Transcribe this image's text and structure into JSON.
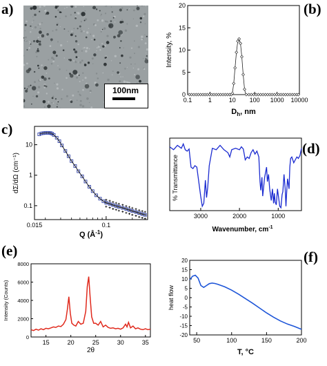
{
  "figure": {
    "panel_labels": [
      "a)",
      "(b)",
      "c)",
      "(d)",
      "(e)",
      "(f)"
    ],
    "scale_bar": "100nm"
  },
  "chart_data": [
    {
      "panel": "b",
      "type": "scatter",
      "xlabel_main": "D",
      "xlabel_sub": "h",
      "xlabel_tail": ", nm",
      "ylabel": "Intensity, %",
      "xscale": "log",
      "xlim": [
        0.1,
        10000
      ],
      "ylim": [
        0,
        20
      ],
      "xticks": [
        "0.1",
        "1",
        "10",
        "100",
        "1000",
        "10000"
      ],
      "yticks": [
        "0",
        "5",
        "10",
        "15",
        "20"
      ],
      "peak_x": [
        10,
        11.5,
        13.2,
        15.2,
        17.5,
        20.1,
        23.1,
        26.5,
        30.5,
        35.1
      ],
      "peak_y": [
        0.3,
        2.5,
        6.0,
        9.5,
        12.0,
        12.5,
        11.5,
        8.5,
        4.5,
        1.2
      ],
      "baseline_x": [
        0.12,
        0.15,
        0.19,
        0.24,
        0.3,
        0.38,
        0.48,
        0.6,
        0.75,
        0.95,
        1.2,
        1.5,
        1.9,
        2.4,
        3.0,
        3.8,
        4.8,
        6.0,
        7.5,
        9.0,
        42,
        55,
        70,
        90,
        115,
        145,
        185,
        235,
        300,
        380,
        480,
        600,
        760,
        960,
        1200,
        1500,
        1900,
        2400,
        3000,
        3800,
        4800,
        6000,
        7500,
        9000
      ],
      "baseline_y": 0
    },
    {
      "panel": "c",
      "type": "scatter",
      "xlabel": "Q (Å",
      "xlabel_sup": "-1",
      "xlabel_tail": ")",
      "ylabel": "dΣ/dΩ (cm⁻¹)",
      "xscale": "log",
      "yscale": "log",
      "xlim": [
        0.015,
        0.3
      ],
      "ylim": [
        0.035,
        40
      ],
      "xticks": [
        "0.015",
        "0.1"
      ],
      "yticks": [
        "0.1",
        "1",
        "10"
      ],
      "x": [
        0.017,
        0.018,
        0.019,
        0.02,
        0.021,
        0.022,
        0.023,
        0.024,
        0.025,
        0.027,
        0.029,
        0.031,
        0.034,
        0.037,
        0.04,
        0.044,
        0.048,
        0.053,
        0.058,
        0.064,
        0.07,
        0.077,
        0.085,
        0.093,
        0.1,
        0.11,
        0.12,
        0.13,
        0.14,
        0.155,
        0.17,
        0.185,
        0.2,
        0.22,
        0.24,
        0.26,
        0.28
      ],
      "y": [
        22,
        23.5,
        24,
        24.5,
        24.5,
        24.5,
        24,
        23,
        21,
        17,
        13,
        9.5,
        6.2,
        4.2,
        2.9,
        2.0,
        1.35,
        0.92,
        0.62,
        0.42,
        0.3,
        0.22,
        0.17,
        0.14,
        0.125,
        0.115,
        0.105,
        0.098,
        0.092,
        0.085,
        0.078,
        0.072,
        0.067,
        0.062,
        0.057,
        0.053,
        0.05
      ]
    },
    {
      "panel": "d",
      "type": "line",
      "xlabel": "Wavenumber, cm",
      "xlabel_sup": "-1",
      "ylabel": "% Transmittance",
      "xlim": [
        3800,
        400
      ],
      "xticks": [
        "3000",
        "2000",
        "1000"
      ],
      "x": [
        3800,
        3700,
        3600,
        3500,
        3450,
        3400,
        3350,
        3300,
        3250,
        3200,
        3150,
        3100,
        3050,
        3000,
        2960,
        2920,
        2880,
        2850,
        2820,
        2780,
        2700,
        2600,
        2500,
        2400,
        2300,
        2250,
        2200,
        2100,
        2000,
        1950,
        1900,
        1850,
        1800,
        1750,
        1700,
        1650,
        1600,
        1550,
        1500,
        1470,
        1450,
        1420,
        1400,
        1380,
        1350,
        1300,
        1280,
        1250,
        1220,
        1180,
        1150,
        1120,
        1100,
        1080,
        1050,
        1020,
        1000,
        960,
        930,
        900,
        880,
        850,
        820,
        800,
        780,
        760,
        720,
        700,
        680,
        650,
        600,
        560,
        520,
        480,
        440,
        400
      ],
      "y": [
        0.88,
        0.84,
        0.9,
        0.86,
        0.92,
        0.84,
        0.82,
        0.85,
        0.6,
        0.58,
        0.62,
        0.6,
        0.4,
        0.2,
        0.06,
        0.1,
        0.42,
        0.18,
        0.32,
        0.62,
        0.86,
        0.84,
        0.9,
        0.84,
        0.8,
        0.74,
        0.84,
        0.86,
        0.84,
        0.88,
        0.85,
        0.7,
        0.74,
        0.72,
        0.8,
        0.84,
        0.78,
        0.82,
        0.74,
        0.4,
        0.28,
        0.46,
        0.2,
        0.3,
        0.46,
        0.6,
        0.4,
        0.5,
        0.3,
        0.14,
        0.3,
        0.1,
        0.24,
        0.12,
        0.08,
        0.3,
        0.22,
        0.06,
        0.04,
        0.22,
        0.26,
        0.5,
        0.3,
        0.06,
        0.28,
        0.44,
        0.3,
        0.6,
        0.72,
        0.74,
        0.66,
        0.7,
        0.74,
        0.72,
        0.76,
        0.86
      ]
    },
    {
      "panel": "e",
      "type": "line",
      "xlabel": "2θ",
      "ylabel": "Intensity (Counts)",
      "xlim": [
        12,
        36
      ],
      "ylim": [
        0,
        8000
      ],
      "xticks": [
        "15",
        "20",
        "25",
        "30",
        "35"
      ],
      "yticks": [
        "0",
        "2000",
        "4000",
        "6000",
        "8000"
      ],
      "x": [
        12,
        12.5,
        13,
        13.5,
        14,
        14.5,
        15,
        15.5,
        16,
        16.5,
        17,
        17.5,
        18,
        18.5,
        19,
        19.3,
        19.6,
        19.9,
        20.2,
        20.6,
        21,
        21.5,
        22,
        22.5,
        23,
        23.3,
        23.6,
        23.9,
        24.2,
        24.6,
        25,
        25.5,
        26,
        26.5,
        27,
        27.5,
        28,
        28.5,
        29,
        29.5,
        30,
        30.5,
        31,
        31.3,
        31.6,
        32,
        32.5,
        33,
        33.5,
        34,
        34.5,
        35,
        35.5,
        36
      ],
      "y": [
        800,
        700,
        850,
        750,
        900,
        800,
        950,
        900,
        1000,
        1100,
        1050,
        1200,
        1150,
        1400,
        1900,
        3000,
        4400,
        2600,
        1500,
        1300,
        1200,
        1700,
        1400,
        1500,
        2800,
        5500,
        6600,
        4200,
        2200,
        1500,
        1500,
        1300,
        1700,
        1100,
        1300,
        1050,
        950,
        1000,
        900,
        950,
        850,
        1000,
        1400,
        1100,
        1600,
        1000,
        1200,
        900,
        1000,
        850,
        800,
        900,
        800,
        850
      ]
    },
    {
      "panel": "f",
      "type": "line",
      "xlabel": "T, °C",
      "ylabel": "heat flow",
      "xlim": [
        40,
        200
      ],
      "ylim": [
        -20,
        20
      ],
      "xticks": [
        "50",
        "100",
        "150",
        "200"
      ],
      "yticks": [
        "-20",
        "-15",
        "-10",
        "-5",
        "0",
        "5",
        "10",
        "15",
        "20"
      ],
      "x": [
        40,
        44,
        48,
        52,
        56,
        60,
        64,
        68,
        72,
        76,
        80,
        90,
        100,
        110,
        120,
        130,
        140,
        150,
        160,
        170,
        180,
        190,
        200
      ],
      "y": [
        9.5,
        11.5,
        12,
        10.5,
        6.5,
        5.5,
        6.5,
        7.5,
        7.8,
        7.6,
        7.2,
        5.8,
        4.0,
        1.8,
        -0.6,
        -3.0,
        -5.6,
        -8.2,
        -10.5,
        -12.5,
        -14.2,
        -15.5,
        -17.0
      ]
    }
  ]
}
